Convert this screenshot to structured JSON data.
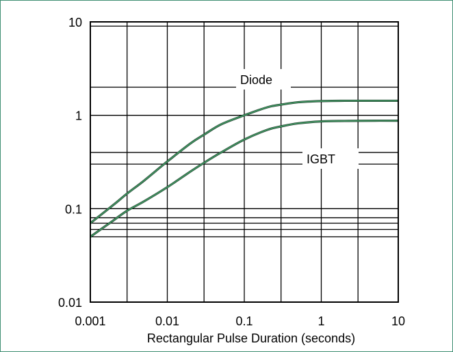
{
  "chart_data": {
    "type": "line",
    "title": "",
    "xlabel": "Rectangular Pulse Duration (seconds)",
    "ylabel": "",
    "x_scale": "log",
    "y_scale": "log",
    "xlim": [
      0.001,
      10
    ],
    "ylim": [
      0.01,
      10
    ],
    "grid": true,
    "x_ticks": [
      {
        "value": 0.001,
        "label": "0.001"
      },
      {
        "value": 0.01,
        "label": "0.01"
      },
      {
        "value": 0.1,
        "label": "0.1"
      },
      {
        "value": 1,
        "label": "1"
      },
      {
        "value": 10,
        "label": "10"
      }
    ],
    "y_ticks": [
      {
        "value": 0.01,
        "label": "0.01"
      },
      {
        "value": 0.1,
        "label": "0.1"
      },
      {
        "value": 1,
        "label": "1"
      },
      {
        "value": 10,
        "label": "10"
      }
    ],
    "x_grid": [
      0.001,
      0.003,
      0.01,
      0.03,
      0.1,
      0.3,
      1,
      3,
      10
    ],
    "y_grid": [
      0.01,
      0.05,
      0.06,
      0.07,
      0.08,
      0.1,
      0.3,
      0.4,
      1,
      2,
      9,
      10
    ],
    "series": [
      {
        "name": "Diode",
        "color": "#3f8f5e",
        "x": [
          0.001,
          0.002,
          0.003,
          0.005,
          0.01,
          0.02,
          0.03,
          0.05,
          0.1,
          0.2,
          0.3,
          0.5,
          1,
          2,
          5,
          10
        ],
        "y": [
          0.07,
          0.11,
          0.145,
          0.2,
          0.32,
          0.5,
          0.62,
          0.8,
          1.0,
          1.22,
          1.3,
          1.38,
          1.42,
          1.43,
          1.43,
          1.43
        ]
      },
      {
        "name": "IGBT",
        "color": "#3f8f5e",
        "x": [
          0.001,
          0.002,
          0.003,
          0.005,
          0.01,
          0.02,
          0.03,
          0.05,
          0.1,
          0.2,
          0.3,
          0.5,
          1,
          2,
          5,
          10
        ],
        "y": [
          0.05,
          0.075,
          0.095,
          0.12,
          0.17,
          0.25,
          0.31,
          0.4,
          0.55,
          0.7,
          0.76,
          0.82,
          0.86,
          0.87,
          0.875,
          0.875
        ]
      }
    ],
    "annotations": [
      {
        "text": "Diode",
        "series": "Diode"
      },
      {
        "text": "IGBT",
        "series": "IGBT"
      }
    ]
  }
}
